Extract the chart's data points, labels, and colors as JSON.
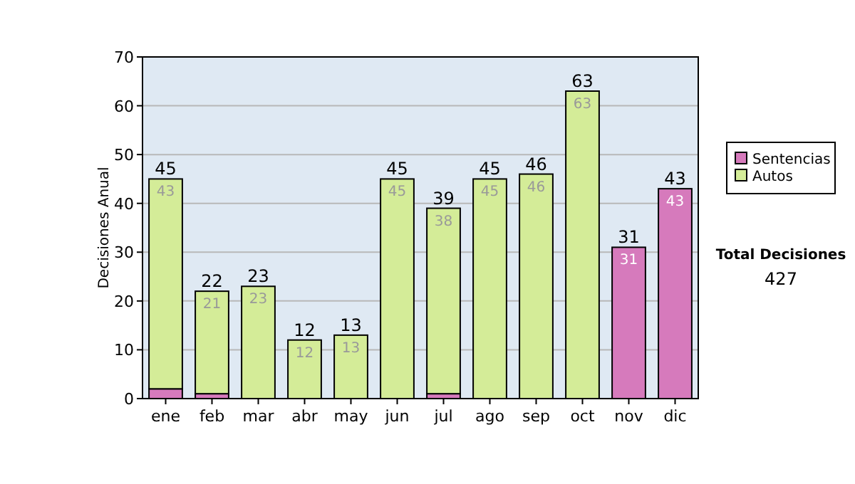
{
  "chart_data": {
    "type": "bar",
    "stacked": true,
    "ylabel": "Decisiones Anual",
    "categories": [
      "ene",
      "feb",
      "mar",
      "abr",
      "may",
      "jun",
      "jul",
      "ago",
      "sep",
      "oct",
      "nov",
      "dic"
    ],
    "series": [
      {
        "name": "Sentencias",
        "color": "#d67abc",
        "values": [
          2,
          1,
          0,
          0,
          0,
          0,
          1,
          0,
          0,
          0,
          31,
          43
        ],
        "value_labels": [
          null,
          null,
          null,
          null,
          null,
          null,
          null,
          null,
          null,
          null,
          "31",
          "43"
        ]
      },
      {
        "name": "Autos",
        "color": "#d4ec98",
        "values": [
          43,
          21,
          23,
          12,
          13,
          45,
          38,
          45,
          46,
          63,
          0,
          0
        ],
        "value_labels": [
          "43",
          "21",
          "23",
          "12",
          "13",
          "45",
          "38",
          "45",
          "46",
          "63",
          null,
          null
        ]
      }
    ],
    "totals": [
      "45",
      "22",
      "23",
      "12",
      "13",
      "45",
      "39",
      "45",
      "46",
      "63",
      "31",
      "43"
    ],
    "ylim": [
      0,
      70
    ],
    "yticks": [
      0,
      10,
      20,
      30,
      40,
      50,
      60,
      70
    ],
    "grid": "y",
    "legend": "right",
    "annotations": [
      "Total Decisiones",
      "427"
    ]
  }
}
